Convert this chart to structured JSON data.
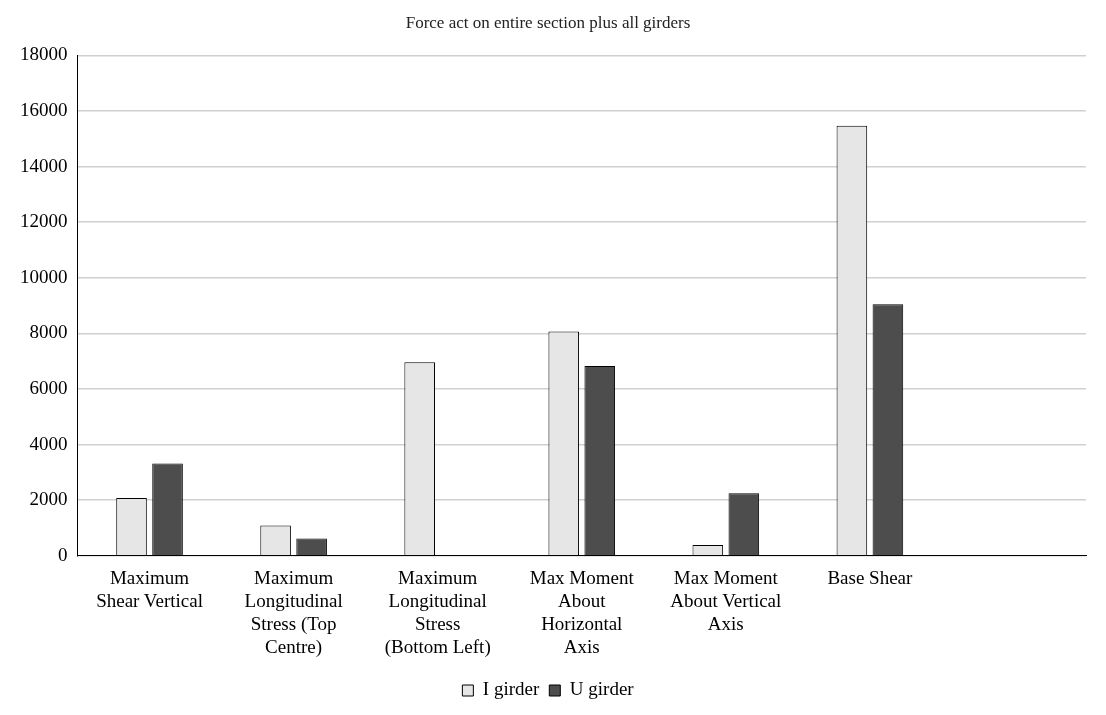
{
  "chart_data": {
    "type": "bar",
    "title": "Force act on entire section plus all girders",
    "categories": [
      "Maximum Shear Vertical",
      "Maximum Longitudinal Stress (Top Centre)",
      "Maximum Longitudinal Stress (Bottom Left)",
      "Max Moment About Horizontal Axis",
      "Max Moment About Vertical Axis",
      "Base Shear",
      null
    ],
    "series": [
      {
        "name": "I girder",
        "color": "#e6e6e6",
        "values": [
          2080,
          1090,
          6960,
          8070,
          390,
          15470,
          null
        ]
      },
      {
        "name": "U girder",
        "color": "#4d4d4d",
        "values": [
          3320,
          620,
          null,
          6830,
          2250,
          9050,
          null
        ]
      }
    ],
    "ylim": [
      0,
      18000
    ],
    "yticks": [
      0,
      2000,
      4000,
      6000,
      8000,
      10000,
      12000,
      14000,
      16000,
      18000
    ],
    "grid": "y",
    "legend": "bottom"
  }
}
